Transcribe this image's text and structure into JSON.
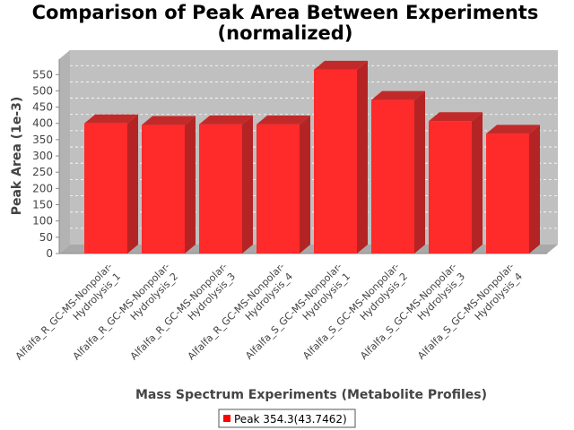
{
  "chart_data": {
    "type": "bar",
    "title_lines": [
      "Comparison of Peak Area Between Experiments",
      "(normalized)"
    ],
    "xlabel": "Mass Spectrum Experiments (Metabolite Profiles)",
    "ylabel": "Peak Area (1e-3)",
    "ylim": [
      0,
      570
    ],
    "yticks": [
      0,
      50,
      100,
      150,
      200,
      250,
      300,
      350,
      400,
      450,
      500,
      550
    ],
    "grid": true,
    "legend_position": "bottom",
    "categories": [
      [
        "Alfalfa_R_GC-MS-Nonpolar-",
        "Hydrolysis_1"
      ],
      [
        "Alfalfa_R_GC-MS-Nonpolar-",
        "Hydrolysis_2"
      ],
      [
        "Alfalfa_R_GC-MS-Nonpolar-",
        "Hydrolysis_3"
      ],
      [
        "Alfalfa_R_GC-MS-Nonpolar-",
        "Hydrolysis_4"
      ],
      [
        "Alfalfa_S_GC-MS-Nonpolar-",
        "Hydrolysis_1"
      ],
      [
        "Alfalfa_S_GC-MS-Nonpolar-",
        "Hydrolysis_2"
      ],
      [
        "Alfalfa_S_GC-MS-Nonpolar-",
        "Hydrolysis_3"
      ],
      [
        "Alfalfa_S_GC-MS-Nonpolar-",
        "Hydrolysis_4"
      ]
    ],
    "series": [
      {
        "name": "Peak 354.3(43.7462)",
        "color": "#ff2020",
        "values": [
          400,
          395,
          397,
          397,
          565,
          472,
          407,
          368
        ]
      }
    ]
  }
}
